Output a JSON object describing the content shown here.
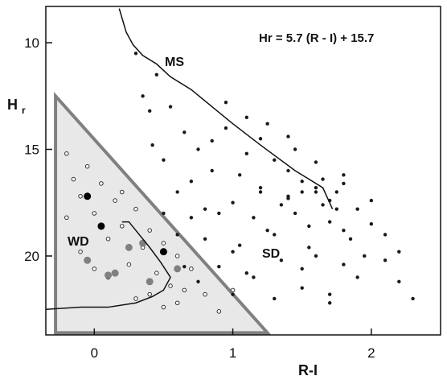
{
  "chart_data": {
    "type": "scatter",
    "title": "",
    "xlabel": "R-I",
    "ylabel": "H",
    "ylabel_subscript": "r",
    "xlim": [
      -0.35,
      2.5
    ],
    "ylim": [
      23.7,
      8.3
    ],
    "y_inverted": true,
    "x_ticks": [
      0,
      1,
      2
    ],
    "y_ticks": [
      10,
      15,
      20
    ],
    "grid": false,
    "annotations": {
      "equation": "Hr = 5.7 (R - I) + 15.7",
      "ms": "MS",
      "sd": "SD",
      "wd": "WD"
    },
    "main_sequence": {
      "x": [
        0.18,
        0.23,
        0.28,
        0.35,
        0.45,
        0.55,
        0.7,
        0.85,
        1.0,
        1.2,
        1.45,
        1.65,
        1.72
      ],
      "y": [
        8.4,
        9.5,
        10.1,
        10.6,
        11.0,
        11.6,
        12.2,
        13.0,
        13.8,
        14.8,
        16.0,
        16.8,
        17.8
      ]
    },
    "white_dwarf_sequence": {
      "x": [
        -0.35,
        -0.1,
        0.1,
        0.3,
        0.42,
        0.5,
        0.55,
        0.48,
        0.4,
        0.3,
        0.25,
        0.2
      ],
      "y": [
        22.5,
        22.4,
        22.4,
        22.2,
        21.9,
        21.6,
        21.0,
        20.3,
        19.6,
        18.8,
        18.4,
        18.4
      ]
    },
    "white_dwarf_region": {
      "x": [
        -0.28,
        -0.28,
        1.25
      ],
      "y": [
        12.5,
        23.6,
        23.6
      ],
      "fill": "#e8e8e8",
      "stroke": "#808080"
    },
    "series": [
      {
        "name": "",
        "marker": "filled-small",
        "color": "#1a1a1a",
        "x": [
          0.3,
          0.35,
          0.4,
          0.42,
          0.45,
          0.5,
          0.55,
          0.6,
          0.65,
          0.7,
          0.75,
          0.8,
          0.85,
          0.9,
          0.95,
          1.0,
          1.05,
          1.1,
          1.15,
          1.2,
          1.25,
          1.3,
          1.35,
          1.4,
          1.45,
          1.5,
          1.55,
          1.6,
          1.65,
          1.7,
          1.75,
          1.8,
          1.85,
          1.9,
          1.95,
          2.0,
          2.1,
          2.2,
          0.6,
          0.7,
          0.8,
          0.9,
          1.0,
          1.1,
          1.2,
          1.3,
          1.4,
          1.5,
          1.6,
          1.7,
          1.8,
          0.95,
          1.05,
          1.15,
          1.25,
          1.35,
          1.45,
          1.55,
          1.65,
          0.5,
          0.65,
          0.75,
          0.85,
          1.0,
          1.1,
          1.2,
          1.3,
          1.4,
          1.5,
          1.6,
          1.7,
          1.8,
          1.9,
          2.0,
          2.1,
          2.2,
          2.3,
          1.6,
          1.7,
          1.8,
          1.5,
          1.4,
          1.75
        ],
        "y": [
          10.5,
          12.5,
          13.2,
          14.8,
          11.5,
          15.5,
          13.0,
          17.0,
          14.2,
          18.2,
          15.0,
          19.2,
          16.0,
          20.5,
          14.0,
          17.5,
          19.5,
          15.2,
          21.0,
          16.8,
          18.8,
          15.5,
          20.2,
          17.2,
          18.0,
          16.5,
          19.6,
          16.8,
          17.6,
          18.4,
          17.0,
          18.8,
          19.2,
          17.8,
          20.0,
          18.5,
          19.0,
          21.2,
          19.0,
          16.5,
          17.8,
          18.0,
          19.8,
          13.5,
          14.5,
          22.0,
          16.0,
          21.5,
          20.0,
          21.8,
          20.4,
          12.8,
          16.2,
          18.2,
          13.8,
          17.6,
          15.0,
          18.6,
          16.4,
          18.0,
          20.5,
          21.2,
          14.6,
          21.8,
          20.8,
          17.0,
          19.0,
          14.4,
          20.6,
          15.6,
          22.2,
          16.2,
          21.0,
          17.4,
          20.2,
          19.8,
          22.0,
          17.0,
          17.4,
          16.6,
          17.0,
          17.3,
          17.8
        ]
      },
      {
        "name": "",
        "marker": "open-small",
        "color": "#333333",
        "x": [
          -0.2,
          -0.15,
          -0.1,
          -0.05,
          0.0,
          0.05,
          0.1,
          0.15,
          0.2,
          0.25,
          0.3,
          0.35,
          0.4,
          0.45,
          0.5,
          0.55,
          0.6,
          0.65,
          -0.2,
          -0.1,
          0.0,
          0.1,
          0.2,
          0.3,
          0.4,
          0.5,
          0.6,
          0.7,
          0.8,
          0.9,
          1.0
        ],
        "y": [
          15.2,
          16.4,
          17.2,
          15.8,
          18.0,
          16.6,
          19.2,
          17.4,
          18.6,
          20.4,
          17.8,
          19.6,
          18.8,
          20.8,
          19.4,
          21.4,
          20.0,
          21.6,
          18.2,
          19.8,
          20.6,
          21.0,
          17.0,
          22.0,
          21.8,
          22.4,
          22.2,
          20.6,
          21.8,
          22.6,
          21.6
        ]
      },
      {
        "name": "",
        "marker": "filled-large-gray",
        "color": "#808080",
        "x": [
          -0.05,
          0.15,
          0.25,
          0.4,
          0.6,
          0.1,
          0.35
        ],
        "y": [
          20.2,
          20.8,
          19.6,
          21.2,
          20.6,
          20.9,
          19.4
        ]
      },
      {
        "name": "",
        "marker": "filled-large-black",
        "color": "#000000",
        "x": [
          -0.05,
          0.05,
          0.5
        ],
        "y": [
          17.2,
          18.6,
          19.8
        ]
      }
    ]
  }
}
